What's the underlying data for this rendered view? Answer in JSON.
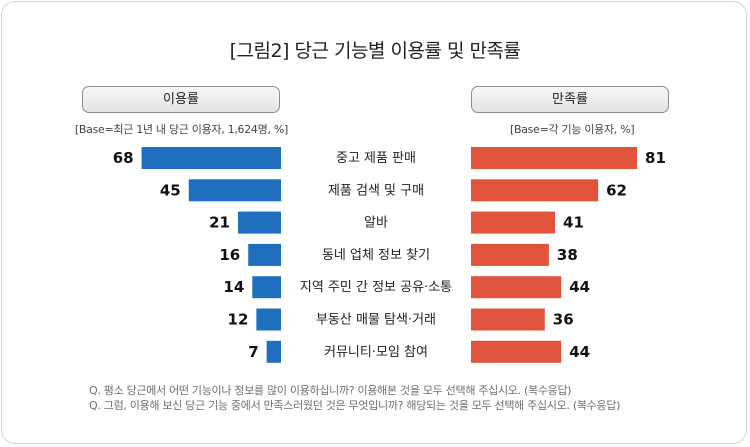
{
  "title": "[그림2] 당근 기능별 이용률 및 만족률",
  "left_panel": {
    "label": "이용률",
    "base_note": "[Base=최근 1년 내 당근 이용자, 1,624명, %]"
  },
  "right_panel": {
    "label": "만족률",
    "base_note": "[Base=각 기능 이용자, %]"
  },
  "footnotes": [
    "Q. 평소 당근에서 어떤 기능이나 정보를 많이 이용하십니까? 이용해본 것을 모두 선택해 주십시오. (복수응답)",
    "Q. 그럼, 이용해 보신 당근 기능 중에서 만족스러웠던 것은 무엇입니까? 해당되는 것을 모두 선택해 주십시오. (복수응답)"
  ],
  "colors": {
    "usage": "#1f6fbf",
    "satisfaction": "#e0533c"
  },
  "chart_data": {
    "type": "bar",
    "categories": [
      "중고 제품 판매",
      "제품 검색 및 구매",
      "알바",
      "동네 업체 정보 찾기",
      "지역 주민 간 정보 공유·소통",
      "부동산 매물 탐색·거래",
      "커뮤니티·모임 참여"
    ],
    "series": [
      {
        "name": "이용률",
        "values": [
          68,
          45,
          21,
          16,
          14,
          12,
          7
        ]
      },
      {
        "name": "만족률",
        "values": [
          81,
          62,
          41,
          38,
          44,
          36,
          44
        ]
      }
    ]
  }
}
